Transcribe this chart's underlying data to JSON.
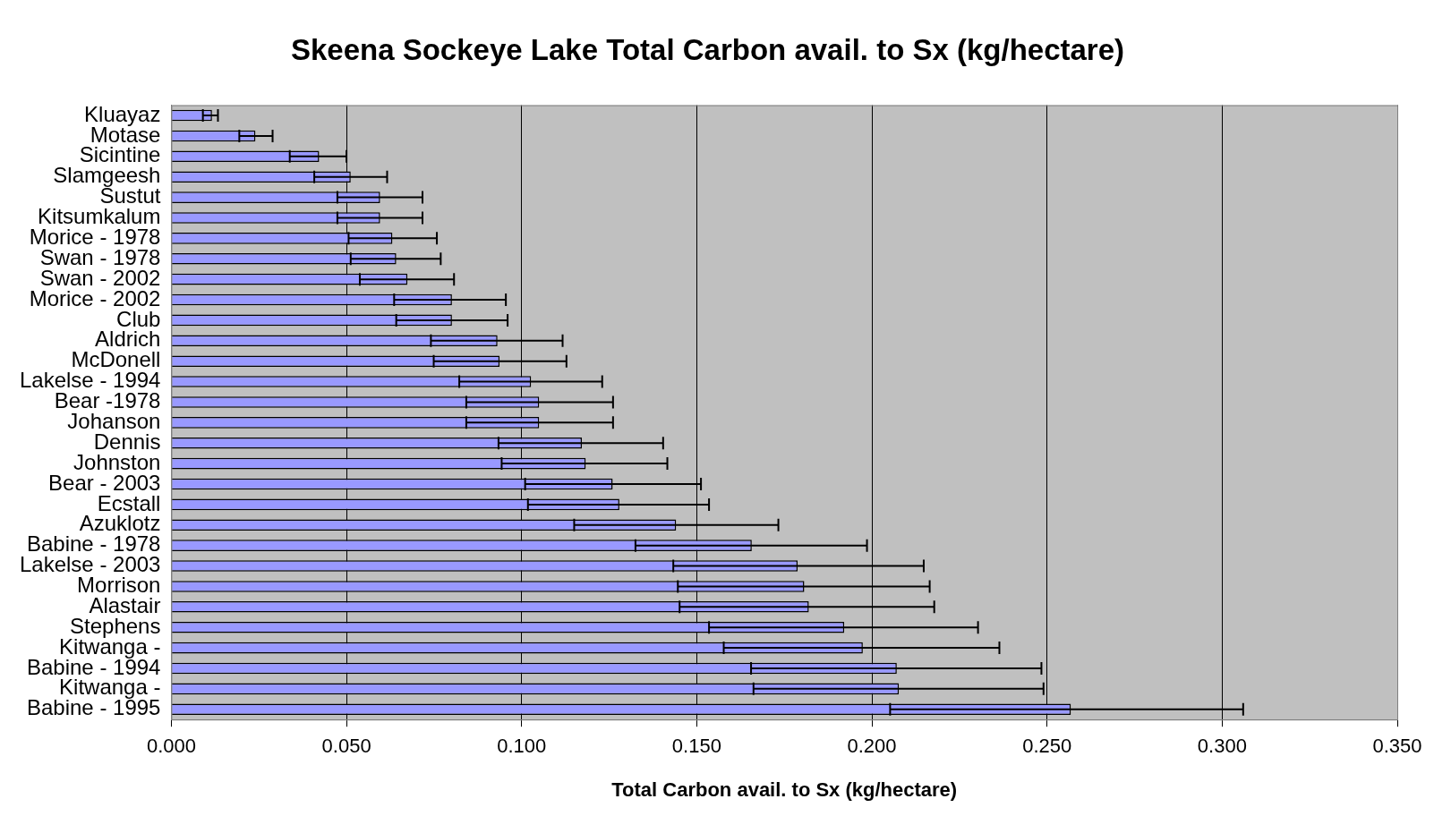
{
  "chart_data": {
    "type": "bar",
    "orientation": "horizontal",
    "title": "Skeena Sockeye Lake Total Carbon avail. to Sx (kg/hectare)",
    "xlabel": "Total Carbon avail. to Sx (kg/hectare)",
    "categories": [
      "Kluayaz",
      "Motase",
      "Sicintine",
      "Slamgeesh",
      "Sustut",
      "Kitsumkalum",
      "Morice - 1978",
      "Swan - 1978",
      "Swan - 2002",
      "Morice - 2002",
      "Club",
      "Aldrich",
      "McDonell",
      "Lakelse - 1994",
      "Bear -1978",
      "Johanson",
      "Dennis",
      "Johnston",
      "Bear - 2003",
      "Ecstall",
      "Azuklotz",
      "Babine - 1978",
      "Lakelse - 2003",
      "Morrison",
      "Alastair",
      "Stephens",
      "Kitwanga -",
      "Babine - 1994",
      "Kitwanga -",
      "Babine - 1995"
    ],
    "values": [
      0.0116,
      0.024,
      0.0422,
      0.0512,
      0.0596,
      0.0596,
      0.0631,
      0.0642,
      0.0674,
      0.0801,
      0.0801,
      0.0931,
      0.0937,
      0.1027,
      0.105,
      0.105,
      0.1172,
      0.1183,
      0.126,
      0.1279,
      0.1441,
      0.1657,
      0.1788,
      0.1807,
      0.182,
      0.1921,
      0.1974,
      0.2071,
      0.2077,
      0.2568
    ],
    "errors": [
      [
        0.009,
        0.0133
      ],
      [
        0.0194,
        0.0289
      ],
      [
        0.0338,
        0.05
      ],
      [
        0.0408,
        0.0616
      ],
      [
        0.0474,
        0.0717
      ],
      [
        0.0474,
        0.0717
      ],
      [
        0.0506,
        0.0758
      ],
      [
        0.0512,
        0.0769
      ],
      [
        0.0538,
        0.0807
      ],
      [
        0.0636,
        0.0955
      ],
      [
        0.0642,
        0.096
      ],
      [
        0.0741,
        0.1117
      ],
      [
        0.0749,
        0.1128
      ],
      [
        0.0822,
        0.123
      ],
      [
        0.0842,
        0.1261
      ],
      [
        0.0842,
        0.1261
      ],
      [
        0.0934,
        0.1404
      ],
      [
        0.0943,
        0.1416
      ],
      [
        0.101,
        0.1512
      ],
      [
        0.1018,
        0.1535
      ],
      [
        0.115,
        0.1733
      ],
      [
        0.1325,
        0.1986
      ],
      [
        0.1433,
        0.2148
      ],
      [
        0.1446,
        0.2165
      ],
      [
        0.1451,
        0.2178
      ],
      [
        0.1535,
        0.2303
      ],
      [
        0.1577,
        0.2364
      ],
      [
        0.1655,
        0.2484
      ],
      [
        0.1662,
        0.249
      ],
      [
        0.2052,
        0.306
      ]
    ],
    "color": "#9999ff",
    "xlim": [
      0,
      0.35
    ],
    "xticks": [
      {
        "value": 0,
        "label": "0.000"
      },
      {
        "value": 0.05,
        "label": "0.050"
      },
      {
        "value": 0.1,
        "label": "0.100"
      },
      {
        "value": 0.15,
        "label": "0.150"
      },
      {
        "value": 0.2,
        "label": "0.200"
      },
      {
        "value": 0.25,
        "label": "0.250"
      },
      {
        "value": 0.3,
        "label": "0.300"
      },
      {
        "value": 0.35,
        "label": "0.350"
      }
    ],
    "grid": "x"
  }
}
